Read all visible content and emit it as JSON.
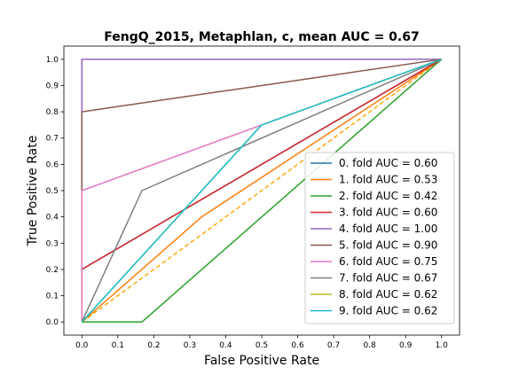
{
  "chart_data": {
    "type": "line",
    "title": "FengQ_2015, Metaphlan, c, mean AUC =  0.67",
    "xlabel": "False Positive Rate",
    "ylabel": "True Positive Rate",
    "xlim": [
      -0.05,
      1.05
    ],
    "ylim": [
      -0.05,
      1.05
    ],
    "xticks": [
      "0.0",
      "0.1",
      "0.2",
      "0.3",
      "0.4",
      "0.5",
      "0.6",
      "0.7",
      "0.8",
      "0.9",
      "1.0"
    ],
    "yticks": [
      "0.0",
      "0.1",
      "0.2",
      "0.3",
      "0.4",
      "0.5",
      "0.6",
      "0.7",
      "0.8",
      "0.9",
      "1.0"
    ],
    "legend_position": "lower-right",
    "chance_line": {
      "x": [
        0,
        1
      ],
      "y": [
        0,
        1
      ],
      "color": "#ffa500",
      "style": "dashed"
    },
    "series": [
      {
        "name": "0. fold AUC = 0.60",
        "color": "#1f77b4",
        "x": [
          0,
          0,
          1
        ],
        "y": [
          0,
          0.2,
          1
        ]
      },
      {
        "name": "1. fold AUC = 0.53",
        "color": "#ff7f0e",
        "x": [
          0,
          0.333,
          1
        ],
        "y": [
          0,
          0.4,
          1
        ]
      },
      {
        "name": "2. fold AUC = 0.42",
        "color": "#2ca02c",
        "x": [
          0,
          0.167,
          1
        ],
        "y": [
          0,
          0,
          1
        ]
      },
      {
        "name": "3. fold AUC = 0.60",
        "color": "#d62728",
        "x": [
          0,
          0,
          1
        ],
        "y": [
          0,
          0.2,
          1
        ]
      },
      {
        "name": "4. fold AUC = 1.00",
        "color": "#9467bd",
        "x": [
          0,
          0,
          1
        ],
        "y": [
          0,
          1,
          1
        ]
      },
      {
        "name": "5. fold AUC = 0.90",
        "color": "#8c564b",
        "x": [
          0,
          0,
          1
        ],
        "y": [
          0,
          0.8,
          1
        ]
      },
      {
        "name": "6. fold AUC = 0.75",
        "color": "#e377c2",
        "x": [
          0,
          0,
          0.5,
          1
        ],
        "y": [
          0,
          0.5,
          0.75,
          1
        ]
      },
      {
        "name": "7. fold AUC = 0.67",
        "color": "#7f7f7f",
        "x": [
          0,
          0.167,
          1
        ],
        "y": [
          0,
          0.5,
          1
        ]
      },
      {
        "name": "8. fold AUC = 0.62",
        "color": "#bcbd22",
        "x": [
          0,
          0.5,
          1
        ],
        "y": [
          0,
          0.75,
          1
        ]
      },
      {
        "name": "9. fold AUC = 0.62",
        "color": "#17becf",
        "x": [
          0,
          0.5,
          1
        ],
        "y": [
          0,
          0.75,
          1
        ]
      }
    ]
  }
}
